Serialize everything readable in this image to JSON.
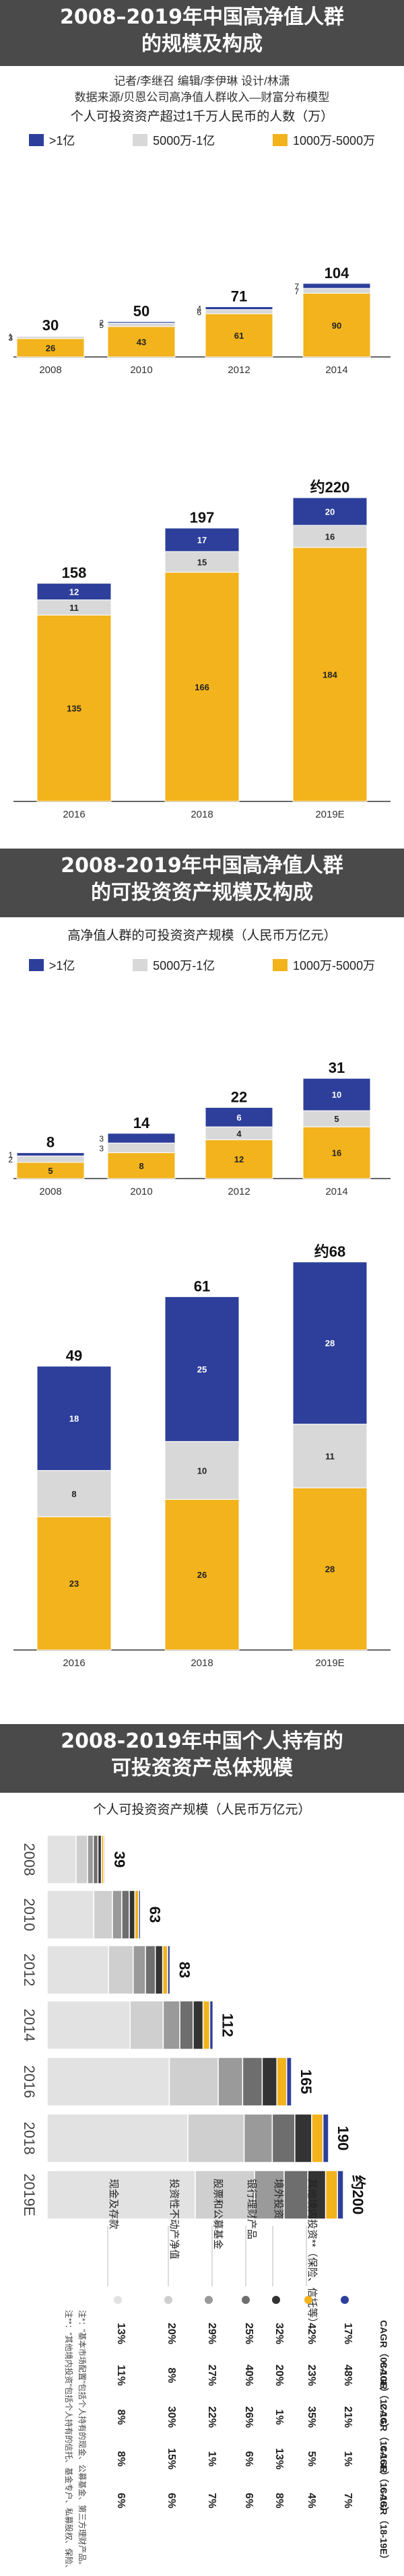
{
  "section1": {
    "title_line1": "2008–2019年中国高净值人群",
    "title_line2": "的规模及构成",
    "credits": "记者/李继召  编辑/李伊琳  设计/林潇",
    "source": "数据来源/贝恩公司高净值人群收入—财富分布模型",
    "subtitle": "个人可投资资产超过1千万人民币的人数（万）"
  },
  "legend": {
    "a": ">1亿",
    "b": "5000万-1亿",
    "c": "1000万-5000万"
  },
  "colors": {
    "blue": "#2d3f9a",
    "gray": "#d8d8d8",
    "yellow": "#f2b31c",
    "banner": "#4a4a4a"
  },
  "section2": {
    "title_line1": "2008-2019年中国高净值人群",
    "title_line2": "的可投资资产规模及构成",
    "subtitle": "高净值人群的可投资资产规模（人民币万亿元）"
  },
  "section3": {
    "title_line1": "2008-2019年中国个人持有的",
    "title_line2": "可投资资产总体规模",
    "subtitle": "个人可投资资产规模（人民币万亿元）",
    "cat_labels": [
      "现金及存款",
      "投资性不动产净值",
      "股票和公募基金",
      "银行理财产品",
      "境外投资",
      "其他境内投资**（保险、信托等）"
    ],
    "cagr_headers": [
      "CAGR（08-10E）",
      "CAGR（12-14）",
      "CAGR（14-16E）",
      "CAGR（16-18）",
      "CAGR（18-19E）"
    ],
    "cagr_rows": [
      [
        "13%",
        "11%",
        "8%",
        "8%",
        "6%"
      ],
      [
        "20%",
        "8%",
        "30%",
        "15%",
        "6%"
      ],
      [
        "29%",
        "27%",
        "22%",
        "1%",
        "7%"
      ],
      [
        "25%",
        "40%",
        "26%",
        "6%",
        "6%"
      ],
      [
        "32%",
        "20%",
        "1%",
        "13%",
        "8%"
      ],
      [
        "42%",
        "23%",
        "35%",
        "5%",
        "4%"
      ],
      [
        "17%",
        "48%",
        "21%",
        "1%",
        "7%"
      ]
    ],
    "note1": "注*：\"基本市场配置\"包括个人持有的现金、公募基金、第三方理财产品。",
    "note2": "注**：\"其他境内投资\"包括个人持有的信托、基金专户、私募股权、保险、私募股权等。"
  },
  "chart_data": [
    {
      "type": "bar",
      "title": "个人可投资资产超过1千万人民币的人数（万）",
      "categories": [
        "2008",
        "2010",
        "2012",
        "2014",
        "2016",
        "2018",
        "2019E"
      ],
      "series": [
        {
          "name": "1000万-5000万",
          "values": [
            26,
            43,
            61,
            90,
            135,
            166,
            184
          ]
        },
        {
          "name": "5000万-1亿",
          "values": [
            3,
            5,
            6,
            7,
            11,
            15,
            16
          ]
        },
        {
          "name": ">1亿",
          "values": [
            1,
            2,
            4,
            7,
            12,
            17,
            20
          ]
        }
      ],
      "totals": [
        "30",
        "50",
        "71",
        "104",
        "158",
        "197",
        "约220"
      ]
    },
    {
      "type": "bar",
      "title": "高净值人群的可投资资产规模（人民币万亿元）",
      "categories": [
        "2008",
        "2010",
        "2012",
        "2014",
        "2016",
        "2018",
        "2019E"
      ],
      "series": [
        {
          "name": "1000万-5000万",
          "values": [
            5,
            8,
            12,
            16,
            23,
            26,
            28
          ]
        },
        {
          "name": "5000万-1亿",
          "values": [
            2,
            3,
            4,
            5,
            8,
            10,
            11
          ]
        },
        {
          "name": ">1亿",
          "values": [
            1,
            3,
            6,
            10,
            18,
            25,
            28
          ]
        }
      ],
      "totals": [
        "8",
        "14",
        "22",
        "31",
        "49",
        "61",
        "约68"
      ]
    },
    {
      "type": "bar",
      "title": "个人可投资资产规模（人民币万亿元）",
      "orientation": "horizontal",
      "categories": [
        "2008",
        "2010",
        "2012",
        "2014",
        "2016",
        "2018",
        "2019E"
      ],
      "totals": [
        "39",
        "63",
        "83",
        "112",
        "165",
        "190",
        "约200"
      ]
    }
  ]
}
